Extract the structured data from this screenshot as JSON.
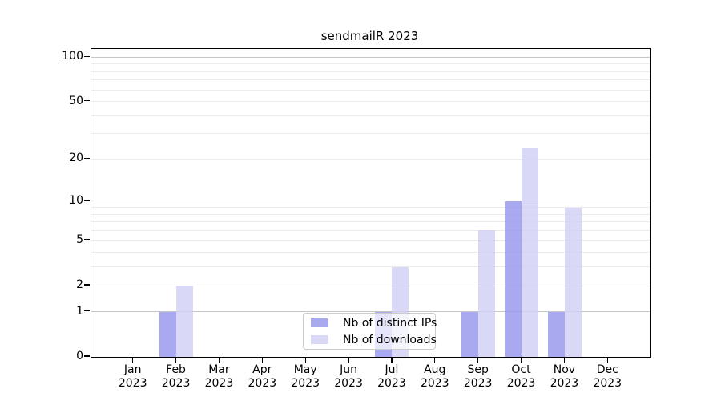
{
  "chart_data": {
    "type": "bar",
    "title": "sendmailR 2023",
    "x_tick_months": [
      "Jan",
      "Feb",
      "Mar",
      "Apr",
      "May",
      "Jun",
      "Jul",
      "Aug",
      "Sep",
      "Oct",
      "Nov",
      "Dec"
    ],
    "x_tick_year": "2023",
    "series": [
      {
        "name": "Nb of distinct IPs",
        "color": "#9494ec",
        "values": [
          0,
          1,
          0,
          0,
          0,
          0,
          1,
          0,
          1,
          10,
          1,
          0
        ]
      },
      {
        "name": "Nb of downloads",
        "color": "#d0d0f5",
        "values": [
          0,
          2,
          0,
          0,
          0,
          0,
          3,
          0,
          6,
          24,
          9,
          0
        ]
      }
    ],
    "bar_opacity": 0.8,
    "y_ticks": [
      0,
      1,
      2,
      5,
      10,
      20,
      50,
      100
    ],
    "y_scale": "log1p",
    "ylim": [
      0,
      113.6
    ],
    "grid": {
      "major": [
        1,
        10,
        100
      ],
      "minor": [
        2,
        3,
        4,
        5,
        6,
        7,
        8,
        9,
        20,
        30,
        40,
        50,
        60,
        70,
        80,
        90
      ]
    },
    "legend_position": "lower center",
    "background": "#ffffff",
    "grid_major_color": "#c6c6c6",
    "grid_minor_color": "#ebebeb"
  }
}
